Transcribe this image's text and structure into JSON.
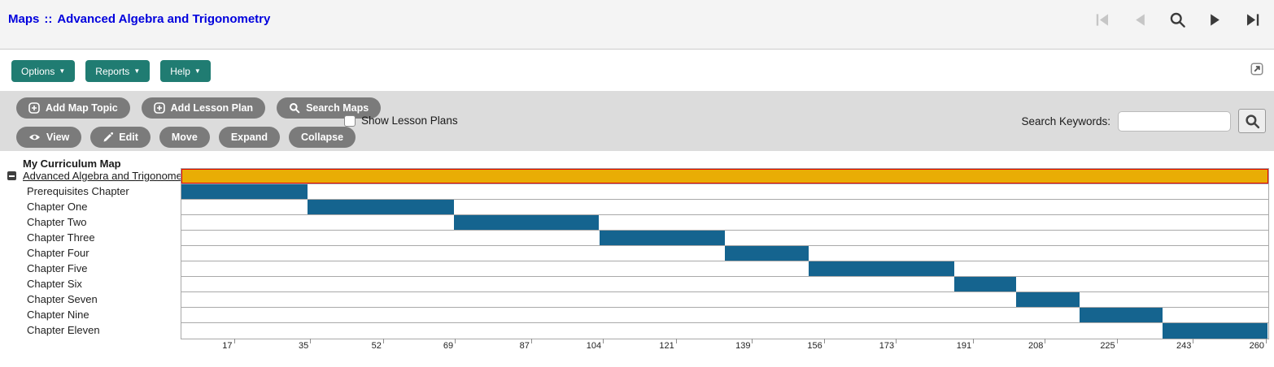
{
  "header": {
    "breadcrumb_section": "Maps",
    "breadcrumb_separator": "::",
    "breadcrumb_title": "Advanced Algebra and Trigonometry",
    "nav_icons": [
      "first-page",
      "previous-page",
      "search",
      "next-page",
      "last-page"
    ],
    "nav_disabled_color": "#c6c6c6",
    "nav_enabled_color": "#3a3a3a"
  },
  "menubar": {
    "options": "Options",
    "reports": "Reports",
    "help": "Help",
    "caret": "▼",
    "accent_color": "#207c72"
  },
  "toolbar": {
    "add_map_topic": "Add Map Topic",
    "add_lesson_plan": "Add Lesson Plan",
    "search_maps": "Search Maps",
    "show_lesson_plans_label": "Show Lesson Plans",
    "show_lesson_plans_checked": false,
    "view": "View",
    "edit": "Edit",
    "move": "Move",
    "expand": "Expand",
    "collapse": "Collapse",
    "search_keywords_label": "Search Keywords:",
    "search_keywords_value": "",
    "search_keywords_placeholder": "",
    "button_color": "#7b7b7b"
  },
  "tree": {
    "root_label": "My Curriculum Map",
    "map_link": "Advanced Algebra and Trigonometry"
  },
  "chart_data": {
    "type": "gantt",
    "title": "My Curriculum Map",
    "axis_unit": "days",
    "axis_ticks": [
      {
        "value": 17,
        "pct": 4.9
      },
      {
        "value": 35,
        "pct": 11.9
      },
      {
        "value": 52,
        "pct": 18.6
      },
      {
        "value": 69,
        "pct": 25.2
      },
      {
        "value": 87,
        "pct": 32.2
      },
      {
        "value": 104,
        "pct": 38.8
      },
      {
        "value": 121,
        "pct": 45.5
      },
      {
        "value": 139,
        "pct": 52.5
      },
      {
        "value": 156,
        "pct": 59.1
      },
      {
        "value": 173,
        "pct": 65.7
      },
      {
        "value": 191,
        "pct": 72.8
      },
      {
        "value": 208,
        "pct": 79.4
      },
      {
        "value": 225,
        "pct": 86.0
      },
      {
        "value": 243,
        "pct": 93.0
      },
      {
        "value": 260,
        "pct": 99.7
      }
    ],
    "rows": [
      {
        "label": "Advanced Algebra and Trigonometry",
        "kind": "map",
        "start_pct": 0,
        "end_pct": 100,
        "color": "#e9ad05",
        "border_color": "#e00000"
      },
      {
        "label": "Prerequisites Chapter",
        "kind": "topic",
        "start_pct": 0,
        "end_pct": 11.6,
        "color": "#15648f"
      },
      {
        "label": "Chapter One",
        "kind": "topic",
        "start_pct": 11.6,
        "end_pct": 25.1,
        "color": "#15648f"
      },
      {
        "label": "Chapter Two",
        "kind": "topic",
        "start_pct": 25.1,
        "end_pct": 38.4,
        "color": "#15648f"
      },
      {
        "label": "Chapter Three",
        "kind": "topic",
        "start_pct": 38.5,
        "end_pct": 50.0,
        "color": "#15648f"
      },
      {
        "label": "Chapter Four",
        "kind": "topic",
        "start_pct": 50.0,
        "end_pct": 57.7,
        "color": "#15648f"
      },
      {
        "label": "Chapter Five",
        "kind": "topic",
        "start_pct": 57.7,
        "end_pct": 71.1,
        "color": "#15648f"
      },
      {
        "label": "Chapter Six",
        "kind": "topic",
        "start_pct": 71.1,
        "end_pct": 76.8,
        "color": "#15648f"
      },
      {
        "label": "Chapter Seven",
        "kind": "topic",
        "start_pct": 76.8,
        "end_pct": 82.6,
        "color": "#15648f"
      },
      {
        "label": "Chapter Nine",
        "kind": "topic",
        "start_pct": 82.6,
        "end_pct": 90.3,
        "color": "#15648f"
      },
      {
        "label": "Chapter Eleven",
        "kind": "topic",
        "start_pct": 90.3,
        "end_pct": 99.9,
        "color": "#15648f"
      }
    ]
  }
}
